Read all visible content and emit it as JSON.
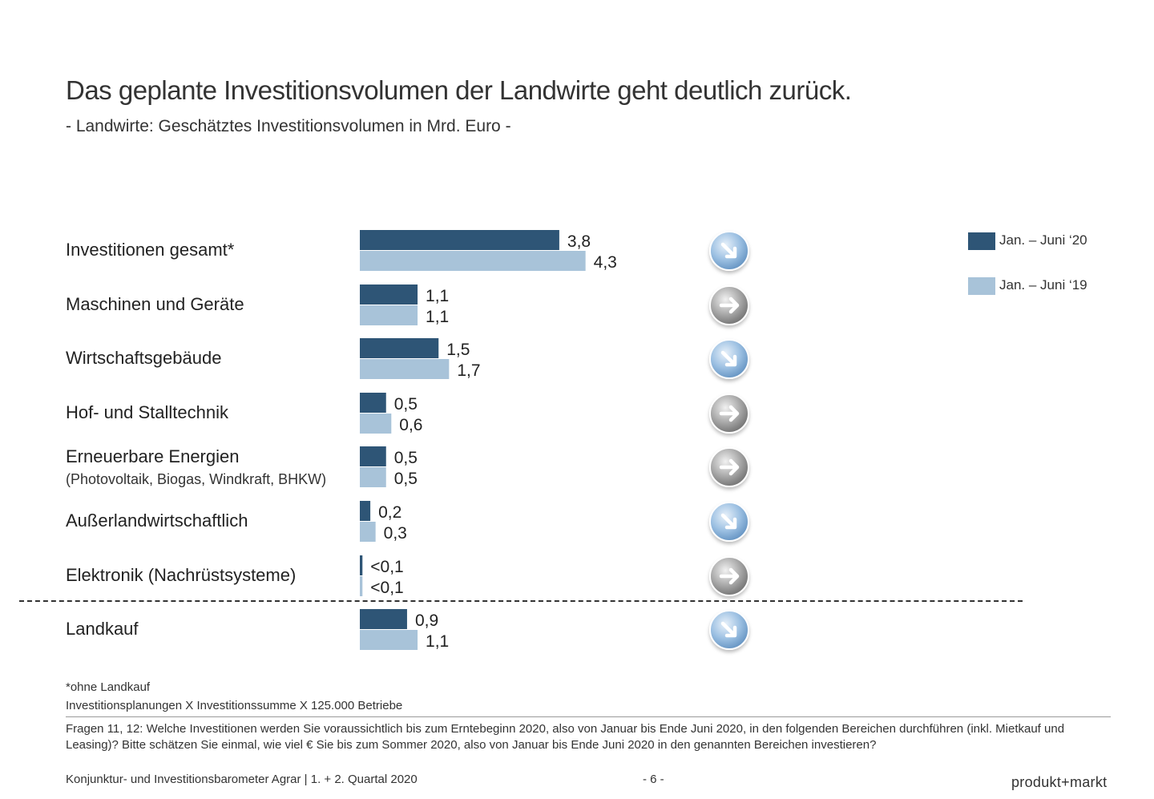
{
  "title": "Das geplante Investitionsvolumen der Landwirte geht deutlich zurück.",
  "subtitle": "- Landwirte: Geschätztes Investitionsvolumen in Mrd. Euro -",
  "legend": {
    "series1": "Jan. – Juni ‘20",
    "series2": "Jan. – Juni ‘19"
  },
  "chart_data": {
    "type": "bar",
    "orientation": "horizontal",
    "categories": [
      "Investitionen gesamt*",
      "Maschinen und Geräte",
      "Wirtschaftsgebäude",
      "Hof- und Stalltechnik",
      "Erneuerbare Energien",
      "Außerlandwirtschaftlich",
      "Elektronik (Nachrüstsysteme)",
      "Landkauf"
    ],
    "category_sublabels": [
      "",
      "",
      "",
      "",
      "(Photovoltaik, Biogas, Windkraft, BHKW)",
      "",
      "",
      ""
    ],
    "series": [
      {
        "name": "Jan. – Juni ‘20",
        "color": "#2e5576",
        "values": [
          3.8,
          1.1,
          1.5,
          0.5,
          0.5,
          0.2,
          0.05,
          0.9
        ],
        "labels": [
          "3,8",
          "1,1",
          "1,5",
          "0,5",
          "0,5",
          "0,2",
          "<0,1",
          "0,9"
        ]
      },
      {
        "name": "Jan. – Juni ‘19",
        "color": "#a8c3d9",
        "values": [
          4.3,
          1.1,
          1.7,
          0.6,
          0.5,
          0.3,
          0.05,
          1.1
        ],
        "labels": [
          "4,3",
          "1,1",
          "1,7",
          "0,6",
          "0,5",
          "0,3",
          "<0,1",
          "1,1"
        ]
      }
    ],
    "trend_icons": [
      "down-right-arrow-icon",
      "right-arrow-icon",
      "down-right-arrow-icon",
      "right-arrow-icon",
      "right-arrow-icon",
      "down-right-arrow-icon",
      "right-arrow-icon",
      "down-right-arrow-icon"
    ],
    "trend_colors": {
      "down": "#8fb4d8",
      "flat": "#9a9a9a"
    },
    "separator_before_category": "Landkauf",
    "grid": false,
    "legend_position": "top-right"
  },
  "footnotes": {
    "note": "*ohne Landkauf",
    "method": "Investitionsplanungen X Investitionssumme X 125.000 Betriebe",
    "question": "Fragen 11, 12: Welche Investitionen werden Sie voraussichtlich bis zum Erntebeginn 2020, also von Januar bis Ende Juni 2020, in den folgenden Bereichen durchführen (inkl. Mietkauf und Leasing)? Bitte schätzen Sie einmal, wie viel € Sie bis zum Sommer 2020, also von Januar bis Ende Juni 2020 in den genannten Bereichen investieren?"
  },
  "footer": {
    "left": "Konjunktur- und Investitionsbarometer Agrar | 1. + 2. Quartal 2020",
    "page": "- 6 -",
    "brand": "produkt+markt"
  }
}
